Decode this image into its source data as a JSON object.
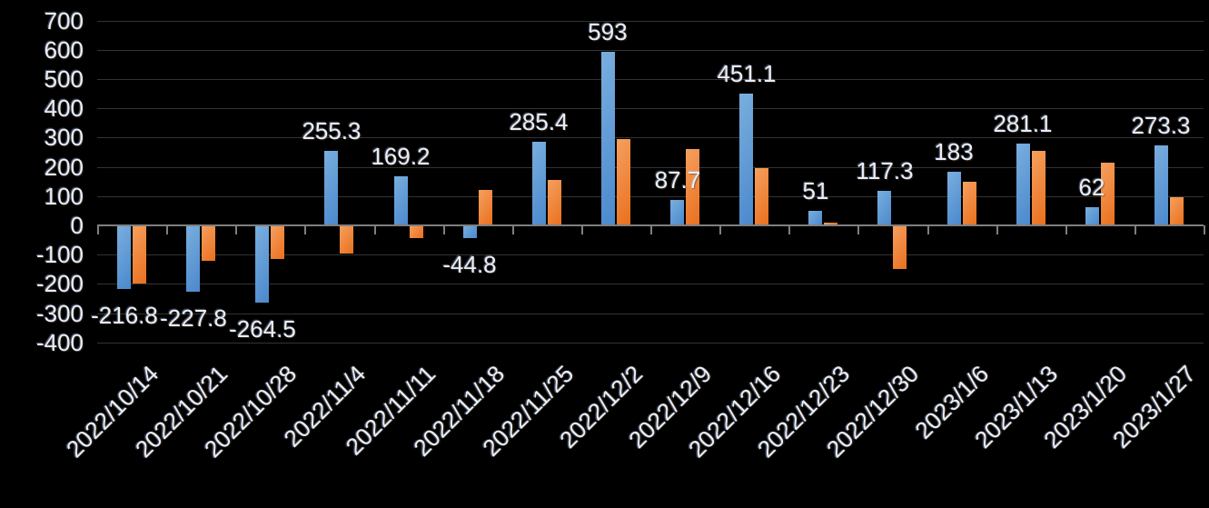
{
  "colors": {
    "background": "#000000",
    "gridline": "#333333",
    "axis": "#7f7f7f",
    "text": "#e8eef7",
    "series_blue_light": "#79aede",
    "series_blue_dark": "#4b89cd",
    "series_orange_light": "#f5a05f",
    "series_orange_dark": "#ea6f1d"
  },
  "chart_data": {
    "type": "bar",
    "title": "",
    "xlabel": "",
    "ylabel": "",
    "legend_position": "none",
    "grid": true,
    "ylim": [
      -400,
      700
    ],
    "ytick_step": 100,
    "y_tick_labels": [
      "700",
      "600",
      "500",
      "400",
      "300",
      "200",
      "100",
      "0",
      "-100",
      "-200",
      "-300",
      "-400"
    ],
    "categories": [
      "2022/10/14",
      "2022/10/21",
      "2022/10/28",
      "2022/11/4",
      "2022/11/11",
      "2022/11/18",
      "2022/11/25",
      "2022/12/2",
      "2022/12/9",
      "2022/12/16",
      "2022/12/23",
      "2022/12/30",
      "2023/1/6",
      "2023/1/13",
      "2023/1/20",
      "2023/1/27"
    ],
    "series": [
      {
        "name": "blue-series",
        "values": [
          -216.8,
          -227.8,
          -264.5,
          255.3,
          169.2,
          -44.8,
          285.4,
          593,
          87.7,
          451.1,
          51,
          117.3,
          183,
          281.1,
          62,
          273.3
        ],
        "data_labels": [
          "-216.8",
          "-227.8",
          "-264.5",
          "255.3",
          "169.2",
          "-44.8",
          "285.4",
          "593",
          "87.7",
          "451.1",
          "51",
          "117.3",
          "183",
          "281.1",
          "62",
          "273.3"
        ]
      },
      {
        "name": "orange-series",
        "values": [
          -200,
          -120,
          -115,
          -95,
          -45,
          120,
          155,
          295,
          260,
          195,
          10,
          -150,
          150,
          255,
          215,
          95
        ],
        "data_labels": []
      }
    ]
  }
}
